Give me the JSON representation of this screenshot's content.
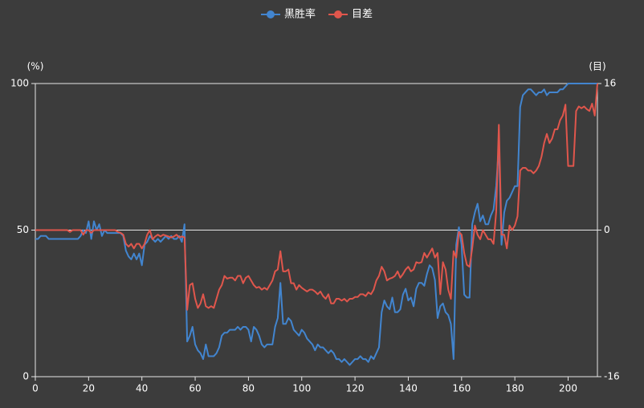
{
  "chart_data": {
    "type": "line",
    "y_label": "(%)",
    "y2_label": "(目)",
    "legend_position": "top",
    "grid": true,
    "xlim": [
      0,
      211
    ],
    "xticks": [
      0,
      20,
      40,
      60,
      80,
      100,
      120,
      140,
      160,
      180,
      200
    ],
    "ylim": [
      0,
      100
    ],
    "yticks": [
      0,
      50,
      100
    ],
    "y2lim": [
      -16,
      16
    ],
    "y2ticks": [
      -16,
      0,
      16
    ],
    "x": [
      0,
      1,
      2,
      3,
      4,
      5,
      6,
      7,
      8,
      9,
      10,
      11,
      12,
      13,
      14,
      15,
      16,
      17,
      18,
      19,
      20,
      21,
      22,
      23,
      24,
      25,
      26,
      27,
      28,
      29,
      30,
      31,
      32,
      33,
      34,
      35,
      36,
      37,
      38,
      39,
      40,
      41,
      42,
      43,
      44,
      45,
      46,
      47,
      48,
      49,
      50,
      51,
      52,
      53,
      54,
      55,
      56,
      57,
      58,
      59,
      60,
      61,
      62,
      63,
      64,
      65,
      66,
      67,
      68,
      69,
      70,
      71,
      72,
      73,
      74,
      75,
      76,
      77,
      78,
      79,
      80,
      81,
      82,
      83,
      84,
      85,
      86,
      87,
      88,
      89,
      90,
      91,
      92,
      93,
      94,
      95,
      96,
      97,
      98,
      99,
      100,
      101,
      102,
      103,
      104,
      105,
      106,
      107,
      108,
      109,
      110,
      111,
      112,
      113,
      114,
      115,
      116,
      117,
      118,
      119,
      120,
      121,
      122,
      123,
      124,
      125,
      126,
      127,
      128,
      129,
      130,
      131,
      132,
      133,
      134,
      135,
      136,
      137,
      138,
      139,
      140,
      141,
      142,
      143,
      144,
      145,
      146,
      147,
      148,
      149,
      150,
      151,
      152,
      153,
      154,
      155,
      156,
      157,
      158,
      159,
      160,
      161,
      162,
      163,
      164,
      165,
      166,
      167,
      168,
      169,
      170,
      171,
      172,
      173,
      174,
      175,
      176,
      177,
      178,
      179,
      180,
      181,
      182,
      183,
      184,
      185,
      186,
      187,
      188,
      189,
      190,
      191,
      192,
      193,
      194,
      195,
      196,
      197,
      198,
      199,
      200,
      201,
      202,
      203,
      204,
      205,
      206,
      207,
      208,
      209,
      210,
      211
    ],
    "series": [
      {
        "name": "黑胜率",
        "color": "#4285cf",
        "values": [
          47,
          47,
          48,
          48,
          48,
          47,
          47,
          47,
          47,
          47,
          47,
          47,
          47,
          47,
          47,
          47,
          47,
          48,
          50,
          49,
          53,
          47,
          53,
          50,
          52,
          48,
          50,
          49,
          49,
          49,
          49,
          49,
          49,
          48,
          43,
          41,
          40,
          42,
          40,
          42,
          38,
          45,
          46,
          48,
          47,
          46,
          47,
          46,
          47,
          48,
          47,
          48,
          47,
          47,
          48,
          46,
          52,
          12,
          14,
          17,
          11,
          9,
          8,
          6,
          11,
          7,
          7,
          7,
          8,
          10,
          14,
          15,
          15,
          16,
          16,
          16,
          17,
          16,
          17,
          17,
          16,
          12,
          17,
          16,
          14,
          11,
          10,
          11,
          11,
          11,
          17,
          20,
          32,
          18,
          18,
          20,
          19,
          16,
          15,
          14,
          16,
          15,
          13,
          12,
          11,
          9,
          11,
          10,
          10,
          9,
          8,
          9,
          8,
          6,
          6,
          5,
          6,
          5,
          4,
          5,
          6,
          6,
          7,
          6,
          6,
          5,
          7,
          6,
          8,
          10,
          22,
          26,
          24,
          23,
          27,
          22,
          22,
          23,
          28,
          30,
          26,
          27,
          24,
          30,
          32,
          32,
          31,
          35,
          38,
          37,
          33,
          20,
          24,
          25,
          22,
          21,
          18,
          6,
          45,
          51,
          45,
          28,
          27,
          27,
          52,
          56,
          59,
          53,
          55,
          52,
          52,
          55,
          57,
          65,
          79,
          45,
          56,
          60,
          61,
          63,
          65,
          65,
          92,
          96,
          97,
          98,
          98,
          97,
          96,
          97,
          97,
          98,
          96,
          97,
          97,
          97,
          97,
          98,
          98,
          99,
          100,
          100,
          100,
          100,
          100,
          100,
          100,
          100,
          100,
          100,
          100,
          100
        ]
      },
      {
        "name": "目差",
        "color": "#e0564c",
        "axis": "y2",
        "values": [
          0,
          0,
          0,
          0,
          0,
          0,
          0,
          0,
          0,
          0,
          0,
          0,
          0,
          -0.2,
          0,
          0,
          0,
          0,
          -0.5,
          0,
          0,
          -0.3,
          0,
          0,
          0,
          0,
          0,
          0,
          0,
          0,
          0,
          -0.2,
          -0.3,
          -0.5,
          -1.5,
          -1.8,
          -1.5,
          -2,
          -1.5,
          -1.5,
          -2,
          -1.5,
          -0.5,
          0,
          -1,
          -0.7,
          -0.5,
          -0.7,
          -0.5,
          -0.6,
          -0.7,
          -0.8,
          -0.7,
          -0.5,
          -0.8,
          -0.7,
          -0.8,
          -8.7,
          -6,
          -5.8,
          -7.5,
          -8.5,
          -8,
          -7,
          -8.3,
          -8.5,
          -8.3,
          -8.5,
          -7.5,
          -6.5,
          -6,
          -5,
          -5.3,
          -5.2,
          -5.2,
          -5.5,
          -5,
          -5,
          -5.8,
          -5.2,
          -5,
          -5.5,
          -6,
          -6.3,
          -6.2,
          -6.5,
          -6.3,
          -6.5,
          -6,
          -5.5,
          -4.5,
          -4.3,
          -2.3,
          -4.5,
          -4.5,
          -4.3,
          -5.8,
          -5.8,
          -6.5,
          -6,
          -6.3,
          -6.5,
          -6.7,
          -6.5,
          -6.5,
          -6.7,
          -7,
          -6.7,
          -7.2,
          -7.5,
          -7,
          -8,
          -8,
          -7.5,
          -7.5,
          -7.7,
          -7.5,
          -7.8,
          -7.5,
          -7.5,
          -7.3,
          -7.3,
          -7,
          -7,
          -7.2,
          -6.8,
          -7,
          -6.5,
          -5.5,
          -5,
          -4,
          -4.5,
          -5.5,
          -5.3,
          -5.2,
          -5,
          -4.5,
          -5.2,
          -4.8,
          -4.3,
          -4,
          -4.5,
          -4.3,
          -3.5,
          -3.6,
          -3.5,
          -2.5,
          -3,
          -2.5,
          -2,
          -3,
          -2.5,
          -7,
          -3.5,
          -4.3,
          -6.5,
          -7.5,
          -2.3,
          -3,
          -0.2,
          -0.5,
          -2.5,
          -3.8,
          -4,
          -2,
          0.5,
          -0.5,
          -1,
          0,
          -0.5,
          -1,
          -1,
          -1.5,
          2,
          11.5,
          -0.5,
          -0.5,
          -2,
          0.5,
          0,
          0.5,
          1.5,
          6.5,
          6.8,
          6.8,
          6.5,
          6.5,
          6.2,
          6.5,
          7,
          8,
          9.5,
          10.5,
          9.5,
          10,
          11,
          11,
          12,
          12.5,
          13.7,
          7,
          7,
          7,
          13,
          13.5,
          13.3,
          13.5,
          13.2,
          13,
          13.8,
          12.5,
          16
        ]
      }
    ]
  }
}
